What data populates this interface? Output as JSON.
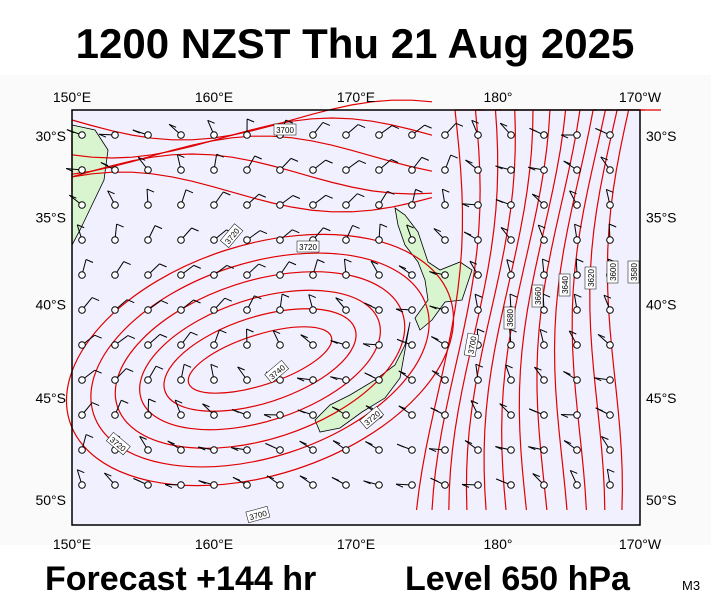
{
  "header": {
    "title": "1200 NZST Thu 21 Aug 2025"
  },
  "footer": {
    "forecast": "Forecast +144 hr",
    "level": "Level 650 hPa",
    "code": "M3"
  },
  "map": {
    "lon_ticks": [
      {
        "value": 150,
        "label": "150°E"
      },
      {
        "value": 160,
        "label": "160°E"
      },
      {
        "value": 170,
        "label": "170°E"
      },
      {
        "value": 180,
        "label": "180°"
      },
      {
        "value": 190,
        "label": "170°W"
      }
    ],
    "lat_ticks": [
      {
        "value": -30,
        "label": "30°S"
      },
      {
        "value": -35,
        "label": "35°S"
      },
      {
        "value": -40,
        "label": "40°S"
      },
      {
        "value": -45,
        "label": "45°S"
      },
      {
        "value": -50,
        "label": "50°S"
      }
    ],
    "contour_labels": [
      "3700",
      "3720",
      "3720",
      "3740",
      "3720",
      "3720",
      "3700",
      "3700",
      "3680",
      "3660",
      "3640",
      "3620",
      "3600",
      "3580"
    ]
  }
}
